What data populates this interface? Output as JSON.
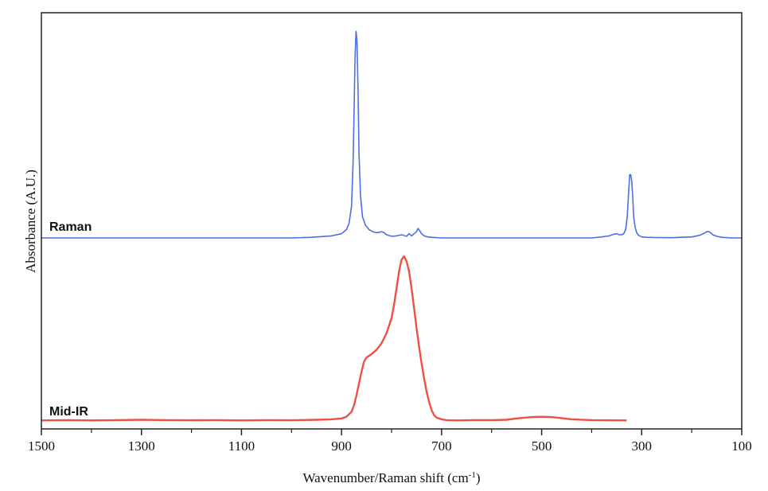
{
  "chart_data": {
    "type": "line",
    "title": "",
    "xlabel": "Wavenumber/Raman shift (cm",
    "xlabel_superscript": "-1",
    "xlabel_suffix": ")",
    "ylabel": "Absorbance (A.U.)",
    "xlim": [
      1500,
      100
    ],
    "x_reversed": true,
    "xticks": [
      1500,
      1300,
      1100,
      900,
      700,
      500,
      300,
      100
    ],
    "xticks_minor": [
      1400,
      1200,
      1000,
      800,
      600,
      400,
      200
    ],
    "y_tick_labels": false,
    "grid": false,
    "legend": "none",
    "series": [
      {
        "name": "Raman",
        "color": "#4a6fe0",
        "x": [
          1500,
          1400,
          1200,
          1000,
          960,
          920,
          900,
          890,
          885,
          880,
          877,
          875,
          873,
          871,
          869,
          867,
          865,
          862,
          858,
          852,
          845,
          838,
          830,
          824,
          820,
          815,
          810,
          800,
          790,
          780,
          770,
          765,
          760,
          755,
          750,
          747,
          744,
          740,
          735,
          728,
          720,
          700,
          600,
          500,
          450,
          400,
          380,
          365,
          355,
          350,
          345,
          340,
          336,
          332,
          329,
          326,
          324,
          322,
          320,
          318,
          316,
          313,
          310,
          306,
          300,
          290,
          270,
          240,
          200,
          185,
          175,
          170,
          166,
          162,
          158,
          150,
          140,
          120,
          100
        ],
        "y": [
          0,
          0,
          0,
          0,
          0.003,
          0.01,
          0.02,
          0.04,
          0.07,
          0.15,
          0.35,
          0.6,
          0.85,
          0.98,
          0.93,
          0.7,
          0.4,
          0.2,
          0.1,
          0.06,
          0.04,
          0.03,
          0.025,
          0.027,
          0.03,
          0.025,
          0.015,
          0.008,
          0.01,
          0.015,
          0.008,
          0.02,
          0.01,
          0.02,
          0.03,
          0.045,
          0.035,
          0.02,
          0.01,
          0.005,
          0.003,
          0,
          0,
          0,
          0,
          0,
          0.005,
          0.01,
          0.018,
          0.02,
          0.015,
          0.015,
          0.02,
          0.04,
          0.1,
          0.22,
          0.3,
          0.3,
          0.27,
          0.2,
          0.1,
          0.05,
          0.025,
          0.012,
          0.005,
          0.003,
          0.002,
          0.001,
          0.005,
          0.012,
          0.022,
          0.03,
          0.03,
          0.025,
          0.015,
          0.008,
          0.003,
          0,
          0
        ]
      },
      {
        "name": "Mid-IR",
        "color": "#ee5044",
        "x": [
          1500,
          1450,
          1400,
          1350,
          1300,
          1250,
          1200,
          1150,
          1100,
          1050,
          1000,
          950,
          920,
          900,
          890,
          880,
          875,
          870,
          865,
          860,
          855,
          850,
          845,
          840,
          830,
          820,
          810,
          800,
          795,
          790,
          785,
          780,
          775,
          770,
          765,
          760,
          755,
          750,
          745,
          740,
          735,
          730,
          725,
          720,
          715,
          710,
          700,
          690,
          670,
          640,
          600,
          570,
          550,
          520,
          500,
          480,
          460,
          440,
          400,
          370,
          330
        ],
        "y": [
          0.008,
          0.01,
          0.008,
          0.01,
          0.012,
          0.01,
          0.009,
          0.01,
          0.008,
          0.01,
          0.009,
          0.012,
          0.015,
          0.02,
          0.03,
          0.06,
          0.1,
          0.16,
          0.23,
          0.3,
          0.36,
          0.385,
          0.395,
          0.405,
          0.43,
          0.47,
          0.53,
          0.62,
          0.7,
          0.8,
          0.9,
          0.97,
          0.99,
          0.96,
          0.9,
          0.8,
          0.68,
          0.56,
          0.45,
          0.35,
          0.26,
          0.18,
          0.12,
          0.07,
          0.04,
          0.025,
          0.015,
          0.01,
          0.008,
          0.01,
          0.01,
          0.012,
          0.02,
          0.028,
          0.03,
          0.028,
          0.022,
          0.015,
          0.01,
          0.009,
          0.008
        ]
      }
    ]
  }
}
